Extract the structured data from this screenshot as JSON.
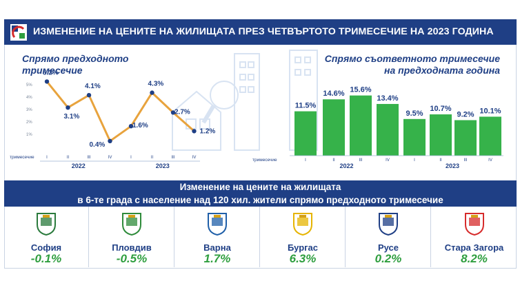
{
  "header": {
    "title": "ИЗМЕНЕНИЕ НА ЦЕНИТЕ НА ЖИЛИЩАТА ПРЕЗ ЧЕТВЪРТОТО ТРИМЕСЕЧИЕ НА 2023 ГОДИНА",
    "logo_icon": "institution-logo-icon"
  },
  "left_panel": {
    "subtitle_line1": "Спрямо предходното",
    "subtitle_line2": "тримесечие"
  },
  "right_panel": {
    "subtitle_line1": "Спрямо съответното тримесечие",
    "subtitle_line2": "на предходната година"
  },
  "chart_data": [
    {
      "type": "line",
      "title": "Спрямо предходното тримесечие",
      "x_axis_label": "тримесечие",
      "categories": [
        "I",
        "II",
        "III",
        "IV",
        "I",
        "II",
        "III",
        "IV"
      ],
      "groups": [
        {
          "label": "2022",
          "count": 4
        },
        {
          "label": "2023",
          "count": 4
        }
      ],
      "values": [
        5.2,
        3.1,
        4.1,
        0.4,
        1.6,
        4.3,
        2.7,
        1.2
      ],
      "data_labels": [
        "5.2%",
        "3.1%",
        "4.1%",
        "0.4%",
        "1.6%",
        "4.3%",
        "2.7%",
        "1.2%"
      ],
      "y_ticks": [
        "1%",
        "2%",
        "3%",
        "4%",
        "5%"
      ],
      "ylim": [
        0,
        6
      ],
      "line_color": "#e8a33d",
      "marker_color": "#1f3f85"
    },
    {
      "type": "bar",
      "title": "Спрямо съответното тримесечие на предходната година",
      "x_axis_label": "тримесечие",
      "categories": [
        "I",
        "II",
        "III",
        "IV",
        "I",
        "II",
        "III",
        "IV"
      ],
      "groups": [
        {
          "label": "2022",
          "count": 4
        },
        {
          "label": "2023",
          "count": 4
        }
      ],
      "values": [
        11.5,
        14.6,
        15.6,
        13.4,
        9.5,
        10.7,
        9.2,
        10.1
      ],
      "data_labels": [
        "11.5%",
        "14.6%",
        "15.6%",
        "13.4%",
        "9.5%",
        "10.7%",
        "9.2%",
        "10.1%"
      ],
      "ylim": [
        0,
        17
      ],
      "bar_color": "#36b24a"
    }
  ],
  "band": {
    "line1": "Изменение на цените на жилищата",
    "line2": "в 6-те града с население над 120 хил. жители спрямо предходното тримесечие"
  },
  "cities": [
    {
      "name": "София",
      "value": "-0.1%",
      "crest_icon": "sofia-crest-icon"
    },
    {
      "name": "Пловдив",
      "value": "-0.5%",
      "crest_icon": "plovdiv-crest-icon"
    },
    {
      "name": "Варна",
      "value": "1.7%",
      "crest_icon": "varna-crest-icon"
    },
    {
      "name": "Бургас",
      "value": "6.3%",
      "crest_icon": "burgas-crest-icon"
    },
    {
      "name": "Русе",
      "value": "0.2%",
      "crest_icon": "ruse-crest-icon"
    },
    {
      "name": "Стара Загора",
      "value": "8.2%",
      "crest_icon": "stara-zagora-crest-icon"
    }
  ],
  "colors": {
    "primary_blue": "#1f3f85",
    "accent_green": "#2e9e3e",
    "bar_green": "#36b24a",
    "line_orange": "#e8a33d"
  }
}
